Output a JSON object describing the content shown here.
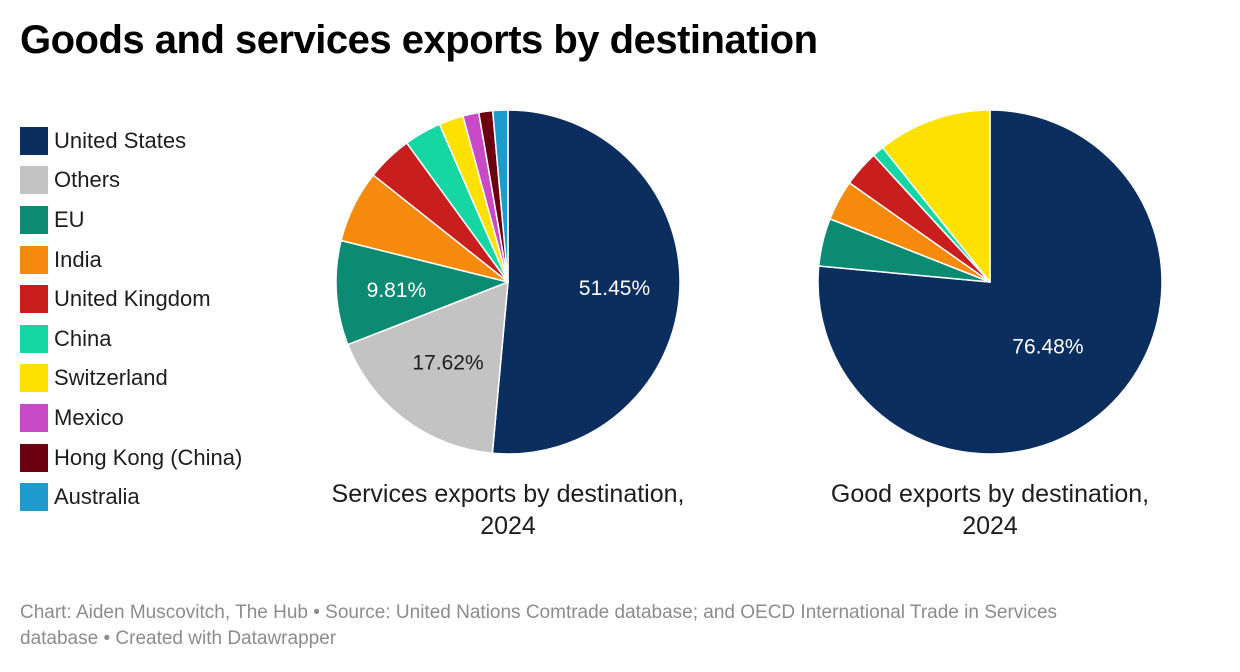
{
  "title": "Goods and services exports by destination",
  "legend": [
    {
      "label": "United States",
      "color": "#0b2e5f"
    },
    {
      "label": "Others",
      "color": "#c3c3c3"
    },
    {
      "label": "EU",
      "color": "#0b8c72"
    },
    {
      "label": "India",
      "color": "#f68a0c"
    },
    {
      "label": "United Kingdom",
      "color": "#c81e1e"
    },
    {
      "label": "China",
      "color": "#16d6a3"
    },
    {
      "label": "Switzerland",
      "color": "#ffe100"
    },
    {
      "label": "Mexico",
      "color": "#c84ac6"
    },
    {
      "label": "Hong Kong (China)",
      "color": "#6a0010"
    },
    {
      "label": "Australia",
      "color": "#1d9bcd"
    }
  ],
  "chart_data": [
    {
      "type": "pie",
      "title": "Services exports by destination, 2024",
      "title_lines": [
        "Services exports by destination,",
        "2024"
      ],
      "categories": [
        "United States",
        "Others",
        "EU",
        "India",
        "United Kingdom",
        "China",
        "Switzerland",
        "Mexico",
        "Hong Kong (China)",
        "Australia"
      ],
      "values": [
        51.45,
        17.62,
        9.81,
        6.8,
        4.3,
        3.5,
        2.3,
        1.5,
        1.3,
        1.42
      ],
      "labels": [
        "51.45%",
        "17.62%",
        "9.81%",
        "",
        "",
        "",
        "",
        "",
        "",
        ""
      ],
      "label_colors": [
        "#ffffff",
        "#1d1d1d",
        "#ffffff",
        "",
        "",
        "",
        "",
        "",
        "",
        ""
      ],
      "unit": "%",
      "start": "top",
      "direction": "clockwise"
    },
    {
      "type": "pie",
      "title": "Good exports by destination, 2024",
      "title_lines": [
        "Good exports by destination,",
        "2024"
      ],
      "categories": [
        "United States",
        "EU",
        "India",
        "United Kingdom",
        "China",
        "Switzerland"
      ],
      "values": [
        76.48,
        4.5,
        3.8,
        3.4,
        1.1,
        10.72
      ],
      "labels": [
        "76.48%",
        "",
        "",
        "",
        "",
        ""
      ],
      "label_colors": [
        "#ffffff",
        "",
        "",
        "",
        "",
        ""
      ],
      "unit": "%",
      "start": "top",
      "direction": "clockwise"
    }
  ],
  "footer": {
    "line1": "Chart: Aiden Muscovitch, The Hub • Source: United Nations Comtrade database; and OECD International Trade in Services",
    "line2": "database • Created with Datawrapper"
  }
}
